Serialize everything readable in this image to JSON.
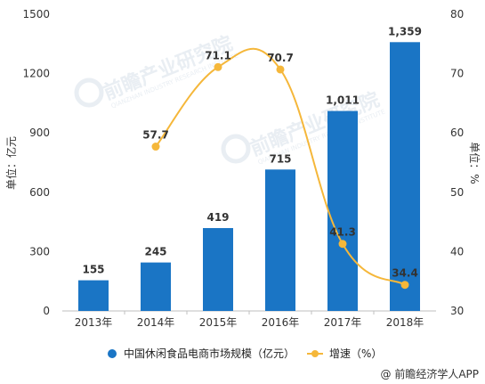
{
  "chart_data": {
    "type": "bar",
    "categories": [
      "2013年",
      "2014年",
      "2015年",
      "2016年",
      "2017年",
      "2018年"
    ],
    "series": [
      {
        "name": "中国休闲食品电商市场规模（亿元）",
        "type": "bar",
        "axis": "left",
        "values": [
          155,
          245,
          419,
          715,
          1011,
          1359
        ],
        "labels": [
          "155",
          "245",
          "419",
          "715",
          "1,011",
          "1,359"
        ],
        "color": "#1a75c5"
      },
      {
        "name": "增速（%）",
        "type": "line",
        "axis": "right",
        "values": [
          null,
          57.7,
          71.1,
          70.7,
          41.3,
          34.4
        ],
        "labels": [
          "",
          "57.7",
          "71.1",
          "70.7",
          "41.3",
          "34.4"
        ],
        "color": "#f5b73a"
      }
    ],
    "y_left": {
      "label": "单位：亿元",
      "ylim": [
        0,
        1500
      ],
      "ticks": [
        0,
        300,
        600,
        900,
        1200,
        1500
      ]
    },
    "y_right": {
      "label": "单位：%",
      "ylim": [
        30,
        80
      ],
      "ticks": [
        30,
        40,
        50,
        60,
        70,
        80
      ]
    },
    "legend": "bottom",
    "grid": false
  },
  "watermark": {
    "text": "前瞻产业研究院",
    "sub": "QIANZHAN INDUSTRY RESEARCH INSTITUTE"
  },
  "source": "@ 前瞻经济学人APP"
}
